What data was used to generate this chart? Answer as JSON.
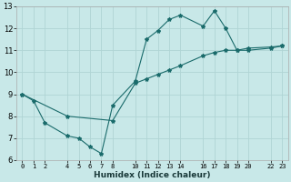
{
  "xlabel": "Humidex (Indice chaleur)",
  "bg_color": "#c8e8e8",
  "grid_color": "#b0d4d4",
  "line_color": "#1a6b6b",
  "series1_x": [
    0,
    1,
    2,
    4,
    5,
    6,
    7,
    8,
    10,
    11,
    12,
    13,
    14,
    16,
    17,
    18,
    19,
    20,
    22,
    23
  ],
  "series1_y": [
    9.0,
    8.7,
    7.7,
    7.1,
    7.0,
    6.6,
    6.3,
    8.5,
    9.6,
    11.5,
    11.9,
    12.4,
    12.6,
    12.1,
    12.8,
    12.0,
    11.0,
    11.0,
    11.1,
    11.2
  ],
  "series2_x": [
    0,
    4,
    8,
    10,
    11,
    12,
    13,
    14,
    16,
    17,
    18,
    19,
    20,
    22,
    23
  ],
  "series2_y": [
    9.0,
    8.0,
    7.8,
    9.5,
    9.7,
    9.9,
    10.1,
    10.3,
    10.75,
    10.9,
    11.0,
    11.0,
    11.1,
    11.15,
    11.2
  ],
  "xlim": [
    -0.5,
    23.5
  ],
  "ylim": [
    6,
    13
  ],
  "xticks": [
    0,
    1,
    2,
    4,
    5,
    6,
    7,
    8,
    10,
    11,
    12,
    13,
    14,
    16,
    17,
    18,
    19,
    20,
    22,
    23
  ],
  "yticks": [
    6,
    7,
    8,
    9,
    10,
    11,
    12,
    13
  ],
  "marker": "*",
  "marker_size": 3,
  "line_width": 0.8
}
